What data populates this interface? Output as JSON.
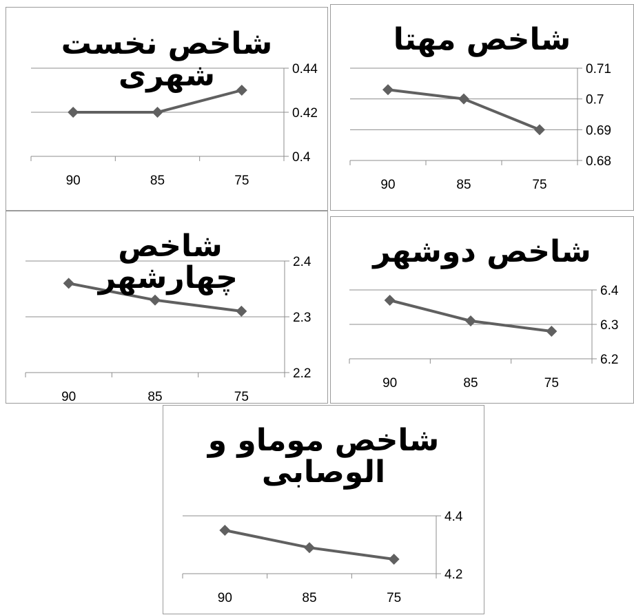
{
  "colors": {
    "series_line": "#606060",
    "gridline": "#8c8c8c",
    "axis": "#8c8c8c",
    "panel_border": "#9a9a9a",
    "text": "#000000"
  },
  "chart_data": [
    {
      "type": "line",
      "title": "شاخص نخست شهری",
      "categories": [
        "90",
        "85",
        "75"
      ],
      "series": [
        {
          "values": [
            0.42,
            0.42,
            0.43
          ]
        }
      ],
      "ylim": [
        0.4,
        0.44
      ],
      "yticks": [
        "0.44",
        "0.42",
        "0.4"
      ],
      "y_axis_side": "right",
      "grid": "horizontal",
      "marker": "diamond"
    },
    {
      "type": "line",
      "title": "شاخص مهتا",
      "categories": [
        "90",
        "85",
        "75"
      ],
      "series": [
        {
          "values": [
            0.703,
            0.7,
            0.69
          ]
        }
      ],
      "ylim": [
        0.68,
        0.71
      ],
      "yticks": [
        "0.71",
        "0.7",
        "0.69",
        "0.68"
      ],
      "y_axis_side": "right",
      "grid": "horizontal",
      "marker": "diamond"
    },
    {
      "type": "line",
      "title": "شاخص چهارشهر",
      "categories": [
        "90",
        "85",
        "75"
      ],
      "series": [
        {
          "values": [
            2.36,
            2.33,
            2.31
          ]
        }
      ],
      "ylim": [
        2.2,
        2.4
      ],
      "yticks": [
        "2.4",
        "2.3",
        "2.2"
      ],
      "y_axis_side": "right",
      "grid": "horizontal",
      "marker": "diamond"
    },
    {
      "type": "line",
      "title": "شاخص دوشهر",
      "categories": [
        "90",
        "85",
        "75"
      ],
      "series": [
        {
          "values": [
            6.37,
            6.31,
            6.28
          ]
        }
      ],
      "ylim": [
        6.2,
        6.4
      ],
      "yticks": [
        "6.4",
        "6.3",
        "6.2"
      ],
      "y_axis_side": "right",
      "grid": "horizontal",
      "marker": "diamond"
    },
    {
      "type": "line",
      "title": "شاخص موماو و الوصابی",
      "categories": [
        "90",
        "85",
        "75"
      ],
      "series": [
        {
          "values": [
            4.35,
            4.29,
            4.25
          ]
        }
      ],
      "ylim": [
        4.2,
        4.4
      ],
      "yticks": [
        "4.4",
        "4.2"
      ],
      "y_axis_side": "right",
      "grid": "horizontal",
      "marker": "diamond"
    }
  ]
}
